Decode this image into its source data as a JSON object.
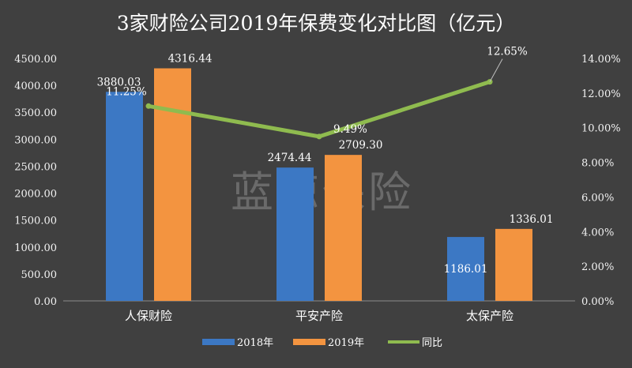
{
  "watermark": "蓝鲸保险",
  "chart_data": {
    "type": "bar",
    "title": "3家财险公司2019年保费变化对比图（亿元）",
    "categories": [
      "人保财险",
      "平安产险",
      "太保产险"
    ],
    "series": [
      {
        "name": "2018年",
        "values": [
          3880.03,
          2474.44,
          1186.01
        ],
        "labels": [
          "3880.03",
          "2474.44",
          "1186.01"
        ],
        "color": "#3c78c4"
      },
      {
        "name": "2019年",
        "values": [
          4316.44,
          2709.3,
          1336.01
        ],
        "labels": [
          "4316.44",
          "2709.30",
          "1336.01"
        ],
        "color": "#f39440"
      }
    ],
    "line_series": {
      "name": "同比",
      "values": [
        11.25,
        9.49,
        12.65
      ],
      "labels": [
        "11.25%",
        "9.49%",
        "12.65%"
      ],
      "color": "#8fbb4f",
      "axis": "right"
    },
    "ylim": [
      0,
      4500
    ],
    "y2lim": [
      0,
      14
    ],
    "y_ticks": [
      "0.00",
      "500.00",
      "1000.00",
      "1500.00",
      "2000.00",
      "2500.00",
      "3000.00",
      "3500.00",
      "4000.00",
      "4500.00"
    ],
    "y2_ticks": [
      "0.00%",
      "2.00%",
      "4.00%",
      "6.00%",
      "8.00%",
      "10.00%",
      "12.00%",
      "14.00%"
    ],
    "legend_position": "bottom",
    "grid": false,
    "xlabel": "",
    "ylabel": ""
  }
}
